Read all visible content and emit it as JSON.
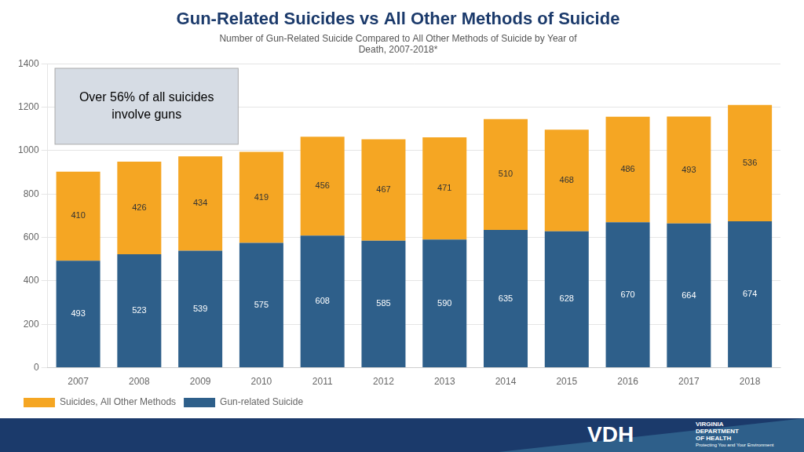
{
  "chart_data": {
    "type": "bar",
    "title": "Gun-Related Suicides vs All Other Methods of Suicide",
    "subtitle": "Number of Gun-Related Suicide Compared to All Other Methods of Suicide by Year of\nDeath, 2007-2018*",
    "categories": [
      "2007",
      "2008",
      "2009",
      "2010",
      "2011",
      "2012",
      "2013",
      "2014",
      "2015",
      "2016",
      "2017",
      "2018"
    ],
    "series": [
      {
        "name": "Gun-related Suicide",
        "color": "#2E5F8A",
        "values": [
          493,
          523,
          539,
          575,
          608,
          585,
          590,
          635,
          628,
          670,
          664,
          674
        ]
      },
      {
        "name": "Suicides, All Other Methods",
        "color": "#F5A623",
        "values": [
          410,
          426,
          434,
          419,
          456,
          467,
          471,
          510,
          468,
          486,
          493,
          536
        ]
      }
    ],
    "stacked": true,
    "ylim": [
      0,
      1400
    ],
    "yticks": [
      0,
      200,
      400,
      600,
      800,
      1000,
      1200,
      1400
    ],
    "grid": true,
    "legend": "bottom",
    "data_labels": true,
    "annotations": [
      "Over 56% of all suicides involve guns",
      "VDH",
      "VIRGINIA",
      "DEPARTMENT",
      "OF HEALTH",
      "Protecting You and Your Environment"
    ]
  }
}
